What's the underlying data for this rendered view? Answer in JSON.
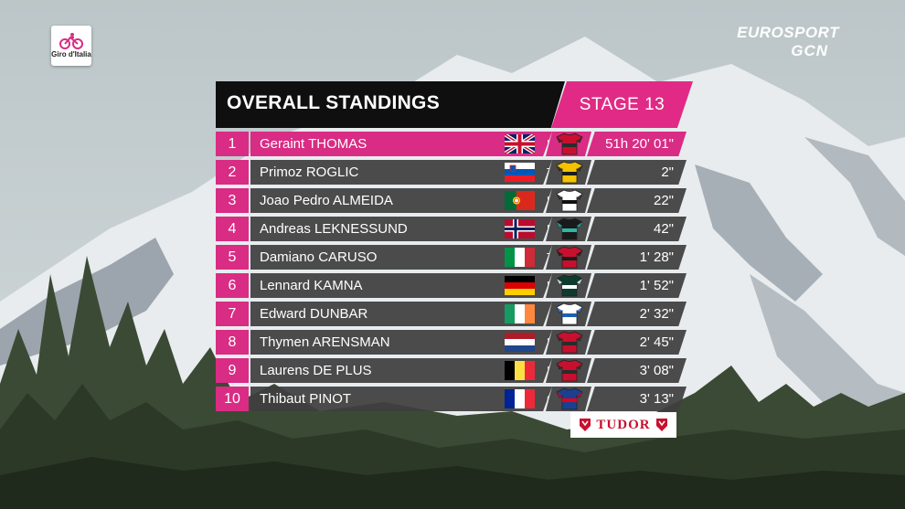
{
  "broadcast": {
    "race_logo_text": "Giro d'Italia",
    "network_logo_line1": "EUROSPORT",
    "network_logo_line2": "GCN"
  },
  "header": {
    "title": "OVERALL STANDINGS",
    "stage": "STAGE 13"
  },
  "standings": [
    {
      "rank": "1",
      "name": "Geraint THOMAS",
      "team": "IGD",
      "time": "51h 20' 01\"",
      "flag": "gbr",
      "jersey": "jersey-igd-icon"
    },
    {
      "rank": "2",
      "name": "Primoz ROGLIC",
      "team": "TJV",
      "time": "2\"",
      "flag": "slo",
      "jersey": "jersey-tjv-icon"
    },
    {
      "rank": "3",
      "name": "Joao Pedro ALMEIDA",
      "team": "UAD",
      "time": "22\"",
      "flag": "por",
      "jersey": "jersey-uad-icon"
    },
    {
      "rank": "4",
      "name": "Andreas LEKNESSUND",
      "team": "DSM",
      "time": "42\"",
      "flag": "nor",
      "jersey": "jersey-dsm-icon"
    },
    {
      "rank": "5",
      "name": "Damiano CARUSO",
      "team": "TBV",
      "time": "1' 28\"",
      "flag": "ita",
      "jersey": "jersey-tbv-icon"
    },
    {
      "rank": "6",
      "name": "Lennard KAMNA",
      "team": "BOH",
      "time": "1' 52\"",
      "flag": "ger",
      "jersey": "jersey-boh-icon"
    },
    {
      "rank": "7",
      "name": "Edward DUNBAR",
      "team": "JAY",
      "time": "2' 32\"",
      "flag": "irl",
      "jersey": "jersey-jay-icon"
    },
    {
      "rank": "8",
      "name": "Thymen ARENSMAN",
      "team": "IGD",
      "time": "2' 45\"",
      "flag": "ned",
      "jersey": "jersey-igd-icon"
    },
    {
      "rank": "9",
      "name": "Laurens DE PLUS",
      "team": "IGD",
      "time": "3' 08\"",
      "flag": "bel",
      "jersey": "jersey-igd-icon"
    },
    {
      "rank": "10",
      "name": "Thibaut PINOT",
      "team": "GFC",
      "time": "3' 13\"",
      "flag": "fra",
      "jersey": "jersey-gfc-icon"
    }
  ],
  "sponsor": {
    "name": "TUDOR"
  },
  "colors": {
    "accent": "#d92c84",
    "header_bg": "#0f0f10",
    "row_bg": "#3e3e40"
  }
}
